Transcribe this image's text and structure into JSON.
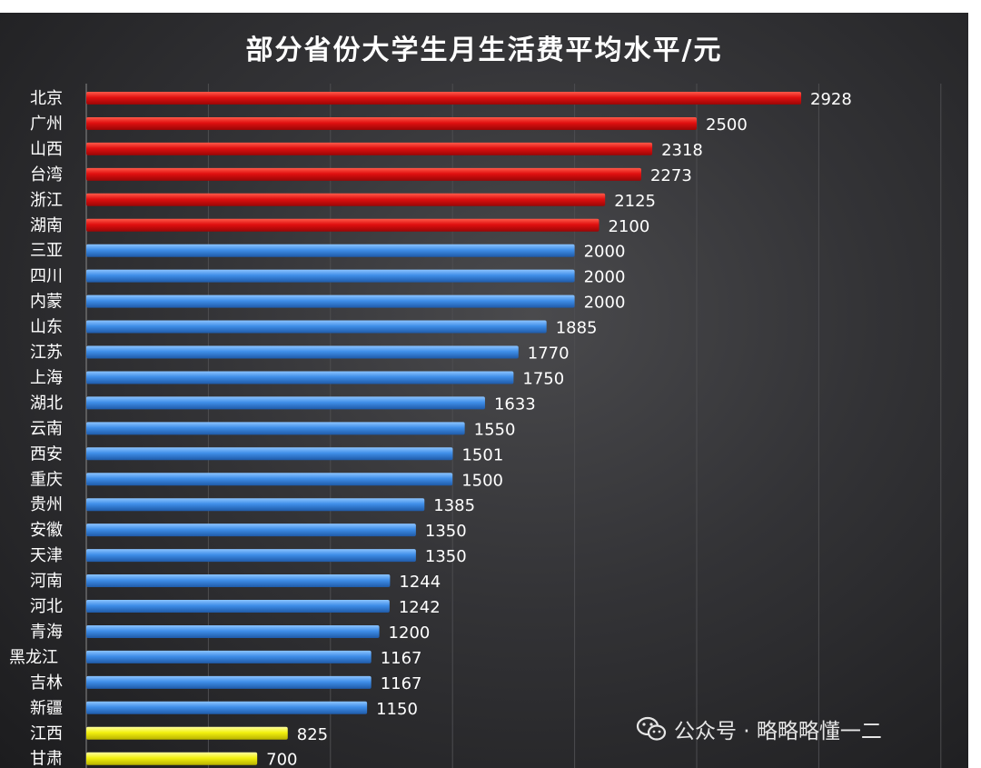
{
  "chart_data": {
    "type": "bar",
    "orientation": "horizontal",
    "title": "部分省份大学生月生活费平均水平/元",
    "xlabel": "",
    "ylabel": "",
    "xlim": [
      0,
      3500
    ],
    "grid": true,
    "legend": "none",
    "categories": [
      "北京",
      "广州",
      "山西",
      "台湾",
      "浙江",
      "湖南",
      "三亚",
      "四川",
      "内蒙",
      "山东",
      "江苏",
      "上海",
      "湖北",
      "云南",
      "西安",
      "重庆",
      "贵州",
      "安徽",
      "天津",
      "河南",
      "河北",
      "青海",
      "黑龙江",
      "吉林",
      "新疆",
      "江西",
      "甘肃"
    ],
    "values": [
      2928,
      2500,
      2318,
      2273,
      2125,
      2100,
      2000,
      2000,
      2000,
      1885,
      1770,
      1750,
      1633,
      1550,
      1501,
      1500,
      1385,
      1350,
      1350,
      1244,
      1242,
      1200,
      1167,
      1167,
      1150,
      825,
      700
    ],
    "value_labels": [
      "2928",
      "2500",
      "2318",
      "2273",
      "2125",
      "2100",
      "2000",
      "2000",
      "2000",
      "1885",
      "1770",
      "1750",
      "1633",
      "1550",
      "1501",
      "1500",
      "1385",
      "1350",
      "1350",
      "1244",
      "1242",
      "1200",
      "1167",
      "1167",
      "1150",
      "825",
      "700"
    ],
    "bar_groups": [
      "high",
      "high",
      "high",
      "high",
      "high",
      "high",
      "mid",
      "mid",
      "mid",
      "mid",
      "mid",
      "mid",
      "mid",
      "mid",
      "mid",
      "mid",
      "mid",
      "mid",
      "mid",
      "mid",
      "mid",
      "mid",
      "mid",
      "mid",
      "mid",
      "low",
      "low"
    ],
    "colors": {
      "high": "#e01010",
      "mid": "#3f8ee8",
      "low": "#f2f00e"
    }
  },
  "watermark": {
    "icon": "wechat-icon",
    "text": "公众号 · 略略略懂一二"
  }
}
